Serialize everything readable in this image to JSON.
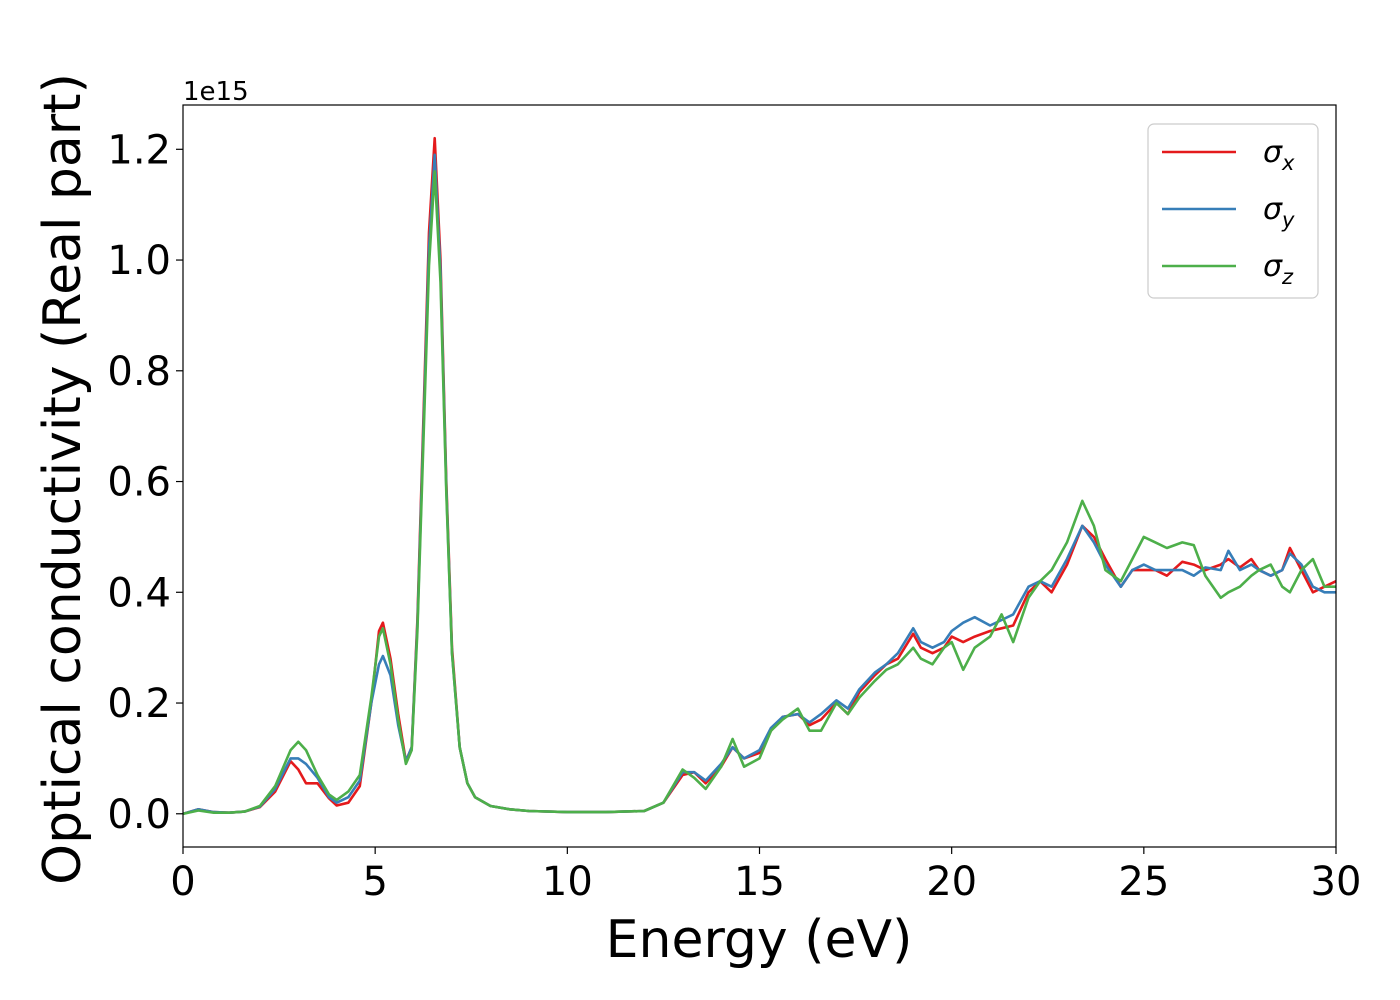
{
  "chart_data": {
    "type": "line",
    "title": "",
    "xlabel": "Energy (eV)",
    "ylabel": "Optical conductivity (Real part)",
    "y_offset_label": "1e15",
    "xlim": [
      0,
      30
    ],
    "ylim": [
      -0.06,
      1.28
    ],
    "x_ticks": [
      "0",
      "5",
      "10",
      "15",
      "20",
      "25",
      "30"
    ],
    "y_ticks": [
      "0.0",
      "0.2",
      "0.4",
      "0.6",
      "0.8",
      "1.0",
      "1.2"
    ],
    "grid": false,
    "legend_position": "top-right",
    "series": [
      {
        "name": "σx",
        "name_base": "σ",
        "name_sub": "x",
        "color": "#e41a1c",
        "x": [
          0,
          0.4,
          0.8,
          1.2,
          1.6,
          2.0,
          2.4,
          2.8,
          3.0,
          3.2,
          3.5,
          3.8,
          4.0,
          4.3,
          4.6,
          4.9,
          5.1,
          5.2,
          5.4,
          5.6,
          5.8,
          5.95,
          6.1,
          6.25,
          6.4,
          6.55,
          6.7,
          6.85,
          7.0,
          7.2,
          7.4,
          7.6,
          8.0,
          8.5,
          9,
          10,
          11,
          12,
          12.5,
          13,
          13.3,
          13.6,
          14,
          14.3,
          14.6,
          15,
          15.3,
          15.6,
          16,
          16.3,
          16.6,
          17,
          17.3,
          17.6,
          18,
          18.3,
          18.6,
          19,
          19.2,
          19.5,
          19.8,
          20,
          20.3,
          20.6,
          21,
          21.3,
          21.6,
          22,
          22.3,
          22.6,
          23,
          23.4,
          23.7,
          24,
          24.4,
          24.7,
          25,
          25.3,
          25.6,
          26,
          26.3,
          26.6,
          27,
          27.2,
          27.5,
          27.8,
          28,
          28.3,
          28.6,
          28.8,
          29.1,
          29.4,
          29.7,
          30
        ],
        "y": [
          0.0,
          0.008,
          0.003,
          0.002,
          0.004,
          0.012,
          0.04,
          0.095,
          0.08,
          0.055,
          0.055,
          0.028,
          0.015,
          0.02,
          0.05,
          0.2,
          0.33,
          0.345,
          0.28,
          0.18,
          0.095,
          0.12,
          0.35,
          0.7,
          1.05,
          1.22,
          1.0,
          0.6,
          0.3,
          0.12,
          0.055,
          0.03,
          0.014,
          0.008,
          0.005,
          0.003,
          0.003,
          0.005,
          0.02,
          0.07,
          0.075,
          0.055,
          0.085,
          0.12,
          0.1,
          0.11,
          0.15,
          0.175,
          0.18,
          0.16,
          0.17,
          0.2,
          0.18,
          0.22,
          0.25,
          0.27,
          0.28,
          0.325,
          0.3,
          0.29,
          0.3,
          0.32,
          0.31,
          0.32,
          0.33,
          0.335,
          0.34,
          0.4,
          0.42,
          0.4,
          0.45,
          0.52,
          0.5,
          0.46,
          0.41,
          0.44,
          0.44,
          0.44,
          0.43,
          0.455,
          0.45,
          0.44,
          0.45,
          0.46,
          0.445,
          0.46,
          0.44,
          0.43,
          0.44,
          0.48,
          0.44,
          0.4,
          0.41,
          0.42
        ]
      },
      {
        "name": "σy",
        "name_base": "σ",
        "name_sub": "y",
        "color": "#377eb8",
        "x": [
          0,
          0.4,
          0.8,
          1.2,
          1.6,
          2.0,
          2.4,
          2.8,
          3.0,
          3.2,
          3.5,
          3.8,
          4.0,
          4.3,
          4.6,
          4.9,
          5.1,
          5.2,
          5.4,
          5.6,
          5.8,
          5.95,
          6.1,
          6.25,
          6.4,
          6.55,
          6.7,
          6.85,
          7.0,
          7.2,
          7.4,
          7.6,
          8.0,
          8.5,
          9,
          10,
          11,
          12,
          12.5,
          13,
          13.3,
          13.6,
          14,
          14.3,
          14.6,
          15,
          15.3,
          15.6,
          16,
          16.3,
          16.6,
          17,
          17.3,
          17.6,
          18,
          18.3,
          18.6,
          19,
          19.2,
          19.5,
          19.8,
          20,
          20.3,
          20.6,
          21,
          21.3,
          21.6,
          22,
          22.3,
          22.6,
          23,
          23.4,
          23.7,
          24,
          24.4,
          24.7,
          25,
          25.3,
          25.6,
          26,
          26.3,
          26.6,
          27,
          27.2,
          27.5,
          27.8,
          28,
          28.3,
          28.6,
          28.8,
          29.1,
          29.4,
          29.7,
          30
        ],
        "y": [
          0.0,
          0.008,
          0.003,
          0.002,
          0.004,
          0.013,
          0.045,
          0.1,
          0.1,
          0.09,
          0.065,
          0.03,
          0.02,
          0.03,
          0.06,
          0.2,
          0.27,
          0.285,
          0.25,
          0.16,
          0.095,
          0.12,
          0.34,
          0.68,
          1.02,
          1.19,
          0.98,
          0.59,
          0.29,
          0.12,
          0.055,
          0.03,
          0.014,
          0.008,
          0.005,
          0.003,
          0.003,
          0.005,
          0.02,
          0.075,
          0.075,
          0.06,
          0.09,
          0.12,
          0.1,
          0.115,
          0.155,
          0.175,
          0.18,
          0.165,
          0.18,
          0.205,
          0.19,
          0.225,
          0.255,
          0.27,
          0.29,
          0.335,
          0.31,
          0.3,
          0.31,
          0.33,
          0.345,
          0.355,
          0.34,
          0.35,
          0.36,
          0.41,
          0.42,
          0.41,
          0.46,
          0.52,
          0.49,
          0.45,
          0.41,
          0.44,
          0.45,
          0.44,
          0.44,
          0.44,
          0.43,
          0.445,
          0.44,
          0.475,
          0.44,
          0.45,
          0.44,
          0.43,
          0.44,
          0.47,
          0.45,
          0.41,
          0.4,
          0.4
        ]
      },
      {
        "name": "σz",
        "name_base": "σ",
        "name_sub": "z",
        "color": "#4daf4a",
        "x": [
          0,
          0.4,
          0.8,
          1.2,
          1.6,
          2.0,
          2.4,
          2.8,
          3.0,
          3.2,
          3.5,
          3.8,
          4.0,
          4.3,
          4.6,
          4.9,
          5.1,
          5.2,
          5.4,
          5.6,
          5.8,
          5.95,
          6.1,
          6.25,
          6.4,
          6.55,
          6.7,
          6.85,
          7.0,
          7.2,
          7.4,
          7.6,
          8.0,
          8.5,
          9,
          10,
          11,
          12,
          12.5,
          13,
          13.3,
          13.6,
          14,
          14.3,
          14.6,
          15,
          15.3,
          15.6,
          16,
          16.3,
          16.6,
          17,
          17.3,
          17.6,
          18,
          18.3,
          18.6,
          19,
          19.2,
          19.5,
          19.8,
          20,
          20.3,
          20.6,
          21,
          21.3,
          21.6,
          22,
          22.3,
          22.6,
          23,
          23.4,
          23.7,
          24,
          24.4,
          24.7,
          25,
          25.3,
          25.6,
          26,
          26.3,
          26.6,
          27,
          27.2,
          27.5,
          27.8,
          28,
          28.3,
          28.6,
          28.8,
          29.1,
          29.4,
          29.7,
          30
        ],
        "y": [
          0.0,
          0.006,
          0.002,
          0.002,
          0.004,
          0.014,
          0.05,
          0.115,
          0.13,
          0.115,
          0.07,
          0.035,
          0.025,
          0.04,
          0.07,
          0.21,
          0.32,
          0.335,
          0.27,
          0.17,
          0.09,
          0.115,
          0.33,
          0.66,
          0.99,
          1.16,
          0.96,
          0.58,
          0.29,
          0.12,
          0.055,
          0.03,
          0.014,
          0.008,
          0.005,
          0.003,
          0.003,
          0.005,
          0.02,
          0.08,
          0.065,
          0.045,
          0.085,
          0.135,
          0.085,
          0.1,
          0.15,
          0.17,
          0.19,
          0.15,
          0.15,
          0.2,
          0.18,
          0.21,
          0.24,
          0.26,
          0.27,
          0.3,
          0.28,
          0.27,
          0.3,
          0.31,
          0.26,
          0.3,
          0.32,
          0.36,
          0.31,
          0.39,
          0.42,
          0.44,
          0.49,
          0.565,
          0.52,
          0.44,
          0.42,
          0.46,
          0.5,
          0.49,
          0.48,
          0.49,
          0.485,
          0.43,
          0.39,
          0.4,
          0.41,
          0.43,
          0.44,
          0.45,
          0.41,
          0.4,
          0.44,
          0.46,
          0.41,
          0.41
        ]
      }
    ]
  }
}
